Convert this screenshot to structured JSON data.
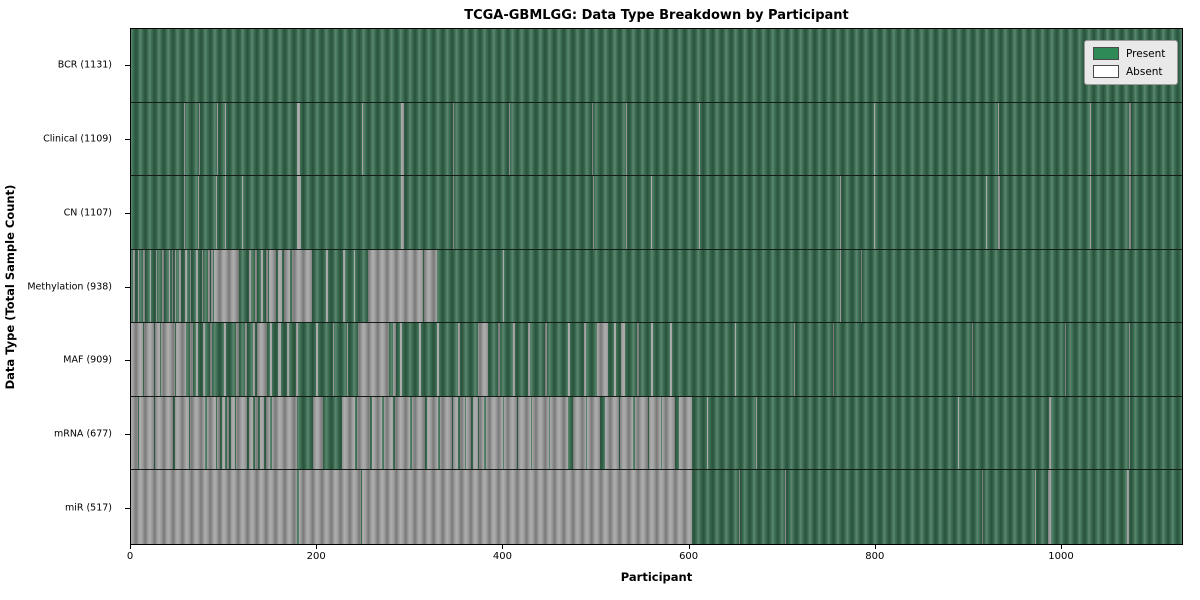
{
  "title": "TCGA-GBMLGG: Data Type Breakdown by Participant",
  "x_axis": {
    "label": "Participant",
    "ticks": [
      0,
      200,
      400,
      600,
      800,
      1000
    ]
  },
  "y_axis": {
    "label": "Data Type (Total Sample Count)"
  },
  "legend": {
    "items": [
      {
        "label": "Present",
        "color": "#2e8b57"
      },
      {
        "label": "Absent",
        "color": "#ffffff"
      }
    ]
  },
  "colors": {
    "present_fill": "#34684c",
    "absent_fill": "#9a9a9a"
  },
  "chart_data": {
    "type": "heatmap",
    "x_max": 1131,
    "x_range": [
      0,
      1131
    ],
    "legend_position": "upper right",
    "value_encoding": {
      "present": "green cell",
      "absent": "gray cell"
    },
    "rows": [
      {
        "label": "BCR (1131)",
        "data_type": "BCR",
        "present_count": 1131,
        "absent_segments": []
      },
      {
        "label": "Clinical (1109)",
        "data_type": "Clinical",
        "present_count": 1109,
        "absent_segments": [
          [
            57,
            58
          ],
          [
            73,
            74
          ],
          [
            93,
            94
          ],
          [
            101,
            102
          ],
          [
            179,
            182
          ],
          [
            249,
            250
          ],
          [
            291,
            294
          ],
          [
            346,
            347
          ],
          [
            407,
            408
          ],
          [
            496,
            497
          ],
          [
            533,
            534
          ],
          [
            611,
            612
          ],
          [
            800,
            801
          ],
          [
            933,
            934
          ],
          [
            1032,
            1033
          ],
          [
            1074,
            1076
          ]
        ]
      },
      {
        "label": "CN (1107)",
        "data_type": "CN",
        "present_count": 1107,
        "absent_segments": [
          [
            57,
            58
          ],
          [
            72,
            73
          ],
          [
            92,
            93
          ],
          [
            101,
            102
          ],
          [
            119,
            120
          ],
          [
            179,
            183
          ],
          [
            291,
            294
          ],
          [
            346,
            347
          ],
          [
            497,
            498
          ],
          [
            533,
            534
          ],
          [
            560,
            561
          ],
          [
            611,
            612
          ],
          [
            763,
            764
          ],
          [
            800,
            801
          ],
          [
            920,
            921
          ],
          [
            933,
            935
          ],
          [
            1032,
            1033
          ],
          [
            1074,
            1076
          ]
        ]
      },
      {
        "label": "Methylation (938)",
        "data_type": "Methylation",
        "present_count": 938,
        "absent_segments": [
          [
            2,
            4
          ],
          [
            7,
            9
          ],
          [
            13,
            15
          ],
          [
            20,
            22
          ],
          [
            27,
            28
          ],
          [
            33,
            35
          ],
          [
            41,
            42
          ],
          [
            44,
            45
          ],
          [
            47,
            48
          ],
          [
            52,
            54
          ],
          [
            58,
            60
          ],
          [
            63,
            65
          ],
          [
            70,
            72
          ],
          [
            76,
            78
          ],
          [
            83,
            85
          ],
          [
            86,
            88
          ],
          [
            89,
            116
          ],
          [
            127,
            129
          ],
          [
            133,
            136
          ],
          [
            140,
            142
          ],
          [
            145,
            147
          ],
          [
            148,
            156
          ],
          [
            158,
            163
          ],
          [
            165,
            171
          ],
          [
            173,
            195
          ],
          [
            210,
            212
          ],
          [
            228,
            230
          ],
          [
            240,
            241
          ],
          [
            255,
            314
          ],
          [
            315,
            329
          ],
          [
            400,
            401
          ],
          [
            763,
            764
          ],
          [
            786,
            787
          ]
        ]
      },
      {
        "label": "MAF (909)",
        "data_type": "MAF",
        "present_count": 909,
        "absent_segments": [
          [
            0,
            13
          ],
          [
            14,
            21
          ],
          [
            21,
            25
          ],
          [
            26,
            31
          ],
          [
            32,
            47
          ],
          [
            48,
            59
          ],
          [
            63,
            67
          ],
          [
            70,
            72
          ],
          [
            78,
            80
          ],
          [
            85,
            87
          ],
          [
            100,
            102
          ],
          [
            113,
            116
          ],
          [
            123,
            125
          ],
          [
            131,
            133
          ],
          [
            136,
            146
          ],
          [
            150,
            152
          ],
          [
            158,
            161
          ],
          [
            168,
            170
          ],
          [
            178,
            180
          ],
          [
            199,
            201
          ],
          [
            217,
            219
          ],
          [
            232,
            233
          ],
          [
            244,
            278
          ],
          [
            282,
            285
          ],
          [
            290,
            292
          ],
          [
            310,
            312
          ],
          [
            329,
            331
          ],
          [
            352,
            354
          ],
          [
            373,
            384
          ],
          [
            395,
            397
          ],
          [
            411,
            413
          ],
          [
            427,
            429
          ],
          [
            446,
            448
          ],
          [
            470,
            472
          ],
          [
            488,
            490
          ],
          [
            502,
            513
          ],
          [
            520,
            522
          ],
          [
            527,
            532
          ],
          [
            545,
            547
          ],
          [
            560,
            562
          ],
          [
            580,
            582
          ],
          [
            650,
            651
          ],
          [
            713,
            714
          ],
          [
            755,
            756
          ],
          [
            905,
            906
          ],
          [
            1005,
            1006
          ],
          [
            1074,
            1075
          ]
        ]
      },
      {
        "label": "mRNA (677)",
        "data_type": "mRNA",
        "present_count": 677,
        "absent_segments": [
          [
            0,
            8
          ],
          [
            9,
            25
          ],
          [
            26,
            45
          ],
          [
            47,
            62
          ],
          [
            64,
            80
          ],
          [
            82,
            91
          ],
          [
            93,
            96
          ],
          [
            98,
            101
          ],
          [
            103,
            106
          ],
          [
            108,
            112
          ],
          [
            113,
            125
          ],
          [
            127,
            131
          ],
          [
            133,
            137
          ],
          [
            139,
            143
          ],
          [
            145,
            150
          ],
          [
            152,
            179
          ],
          [
            196,
            207
          ],
          [
            227,
            241
          ],
          [
            243,
            257
          ],
          [
            259,
            270
          ],
          [
            272,
            282
          ],
          [
            284,
            300
          ],
          [
            302,
            316
          ],
          [
            318,
            330
          ],
          [
            332,
            345
          ],
          [
            347,
            352
          ],
          [
            354,
            359
          ],
          [
            361,
            366
          ],
          [
            368,
            373
          ],
          [
            375,
            380
          ],
          [
            382,
            388
          ],
          [
            389,
            400
          ],
          [
            401,
            415
          ],
          [
            416,
            430
          ],
          [
            432,
            450
          ],
          [
            451,
            470
          ],
          [
            476,
            490
          ],
          [
            491,
            505
          ],
          [
            510,
            525
          ],
          [
            526,
            540
          ],
          [
            542,
            556
          ],
          [
            557,
            570
          ],
          [
            571,
            585
          ],
          [
            590,
            604
          ],
          [
            620,
            621
          ],
          [
            673,
            674
          ],
          [
            890,
            891
          ],
          [
            988,
            990
          ],
          [
            1074,
            1075
          ]
        ]
      },
      {
        "label": "miR (517)",
        "data_type": "miR",
        "present_count": 517,
        "absent_segments": [
          [
            0,
            179
          ],
          [
            181,
            248
          ],
          [
            249,
            604
          ],
          [
            654,
            655
          ],
          [
            704,
            705
          ],
          [
            916,
            917
          ],
          [
            973,
            974
          ],
          [
            987,
            990
          ],
          [
            1072,
            1074
          ]
        ]
      }
    ]
  }
}
